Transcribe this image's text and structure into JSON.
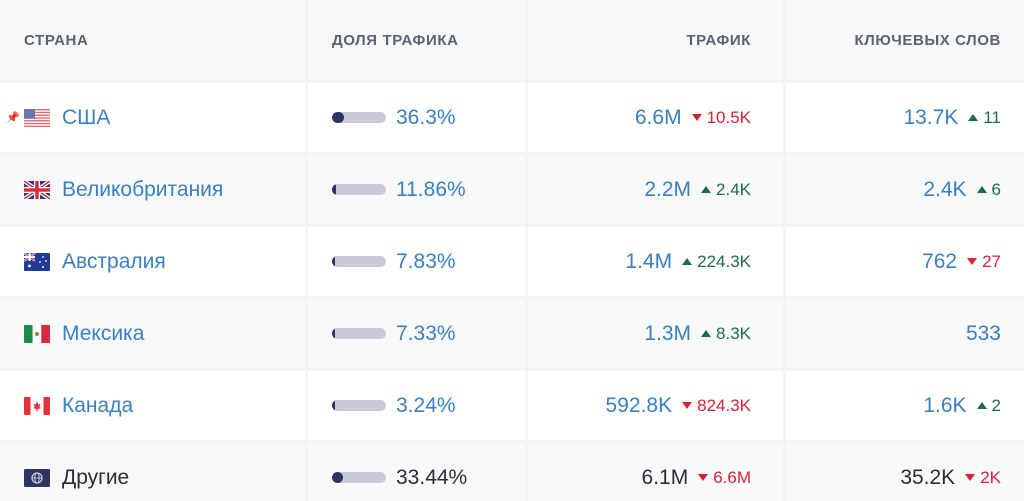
{
  "headers": {
    "country": "СТРАНА",
    "share": "ДОЛЯ ТРАФИКА",
    "traffic": "ТРАФИК",
    "keywords": "КЛЮЧЕВЫХ СЛОВ"
  },
  "colors": {
    "link": "#3a7fc0",
    "up": "#1f6e43",
    "down": "#d42336",
    "bar_fill": "#2d3461",
    "bar_track": "#c9cad8"
  },
  "rows": [
    {
      "country": "США",
      "flag": "us-flag-icon",
      "pinned": true,
      "pin_icon": "pin-icon",
      "share": "36.3%",
      "share_pct": 36.3,
      "traffic": "6.6M",
      "traffic_change": "10.5K",
      "traffic_dir": "down",
      "keywords": "13.7K",
      "keywords_change": "11",
      "keywords_dir": "up"
    },
    {
      "country": "Великобритания",
      "flag": "uk-flag-icon",
      "share": "11.86%",
      "share_pct": 11.86,
      "traffic": "2.2M",
      "traffic_change": "2.4K",
      "traffic_dir": "up",
      "keywords": "2.4K",
      "keywords_change": "6",
      "keywords_dir": "up"
    },
    {
      "country": "Австралия",
      "flag": "australia-flag-icon",
      "share": "7.83%",
      "share_pct": 7.83,
      "traffic": "1.4M",
      "traffic_change": "224.3K",
      "traffic_dir": "up",
      "keywords": "762",
      "keywords_change": "27",
      "keywords_dir": "down"
    },
    {
      "country": "Мексика",
      "flag": "mexico-flag-icon",
      "share": "7.33%",
      "share_pct": 7.33,
      "traffic": "1.3M",
      "traffic_change": "8.3K",
      "traffic_dir": "up",
      "keywords": "533",
      "keywords_change": "",
      "keywords_dir": "none"
    },
    {
      "country": "Канада",
      "flag": "canada-flag-icon",
      "share": "3.24%",
      "share_pct": 3.24,
      "traffic": "592.8K",
      "traffic_change": "824.3K",
      "traffic_dir": "down",
      "keywords": "1.6K",
      "keywords_change": "2",
      "keywords_dir": "up"
    },
    {
      "country": "Другие",
      "flag": "globe-icon",
      "share": "33.44%",
      "share_pct": 33.44,
      "traffic": "6.1M",
      "traffic_change": "6.6M",
      "traffic_dir": "down",
      "keywords": "35.2K",
      "keywords_change": "2K",
      "keywords_dir": "down"
    }
  ]
}
